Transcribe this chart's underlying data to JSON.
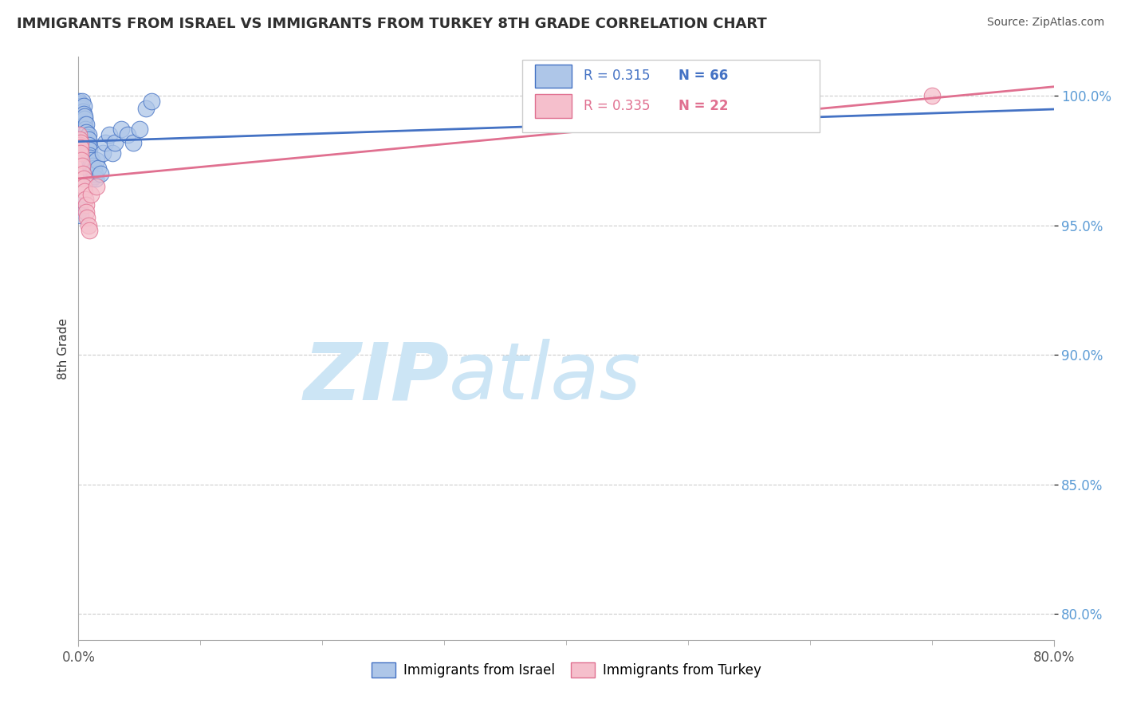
{
  "title": "IMMIGRANTS FROM ISRAEL VS IMMIGRANTS FROM TURKEY 8TH GRADE CORRELATION CHART",
  "source": "Source: ZipAtlas.com",
  "ylabel": "8th Grade",
  "xtick_left": "0.0%",
  "xtick_right": "80.0%",
  "xlim": [
    0.0,
    80.0
  ],
  "ylim": [
    79.0,
    101.5
  ],
  "yticks": [
    80.0,
    85.0,
    90.0,
    95.0,
    100.0
  ],
  "ytick_labels": [
    "80.0%",
    "85.0%",
    "90.0%",
    "95.0%",
    "100.0%"
  ],
  "R_israel": "0.315",
  "N_israel": "66",
  "R_turkey": "0.335",
  "N_turkey": "22",
  "israel_fill": "#aec6e8",
  "israel_edge": "#4472c4",
  "turkey_fill": "#f5bfcc",
  "turkey_edge": "#e07090",
  "israel_line": "#4472c4",
  "turkey_line": "#e07090",
  "bg": "#ffffff",
  "grid_color": "#cccccc",
  "title_color": "#2f2f2f",
  "source_color": "#555555",
  "ytick_color": "#5b9bd5",
  "xtick_color": "#555555",
  "ylabel_color": "#333333",
  "legend_label_israel": "Immigrants from Israel",
  "legend_label_turkey": "Immigrants from Turkey",
  "israel_x": [
    0.05,
    0.08,
    0.1,
    0.12,
    0.15,
    0.18,
    0.2,
    0.22,
    0.25,
    0.28,
    0.3,
    0.32,
    0.35,
    0.38,
    0.4,
    0.42,
    0.45,
    0.48,
    0.5,
    0.52,
    0.55,
    0.58,
    0.6,
    0.62,
    0.65,
    0.68,
    0.7,
    0.72,
    0.75,
    0.78,
    0.8,
    0.82,
    0.85,
    0.88,
    0.9,
    0.92,
    0.95,
    0.98,
    1.0,
    1.02,
    1.05,
    1.08,
    1.1,
    1.15,
    1.2,
    1.25,
    1.3,
    1.35,
    1.4,
    1.5,
    1.6,
    1.8,
    2.0,
    2.2,
    2.5,
    2.8,
    3.0,
    3.5,
    4.0,
    4.5,
    5.0,
    5.5,
    6.0,
    0.05,
    0.1,
    0.15
  ],
  "israel_y": [
    99.8,
    99.6,
    99.5,
    99.3,
    99.7,
    99.4,
    99.6,
    99.2,
    99.5,
    99.3,
    99.8,
    99.1,
    99.4,
    99.2,
    99.6,
    99.0,
    99.3,
    99.1,
    98.9,
    99.2,
    98.7,
    98.5,
    98.9,
    98.6,
    98.3,
    98.1,
    98.4,
    98.2,
    98.0,
    97.8,
    98.5,
    98.3,
    98.1,
    97.9,
    97.7,
    97.5,
    97.3,
    97.6,
    97.4,
    97.2,
    97.0,
    96.8,
    97.5,
    97.3,
    97.1,
    96.9,
    97.2,
    97.0,
    96.8,
    97.5,
    97.2,
    97.0,
    97.8,
    98.2,
    98.5,
    97.8,
    98.2,
    98.7,
    98.5,
    98.2,
    98.7,
    99.5,
    99.8,
    95.8,
    95.6,
    95.4
  ],
  "turkey_x": [
    0.05,
    0.08,
    0.1,
    0.12,
    0.15,
    0.18,
    0.2,
    0.25,
    0.3,
    0.35,
    0.4,
    0.45,
    0.5,
    0.55,
    0.6,
    0.65,
    0.7,
    0.8,
    0.9,
    1.0,
    1.5,
    70.0
  ],
  "turkey_y": [
    98.5,
    98.3,
    98.1,
    97.9,
    98.2,
    98.0,
    97.8,
    97.5,
    97.3,
    97.0,
    96.8,
    96.5,
    96.3,
    96.0,
    95.8,
    95.5,
    95.3,
    95.0,
    94.8,
    96.2,
    96.5,
    100.0
  ]
}
